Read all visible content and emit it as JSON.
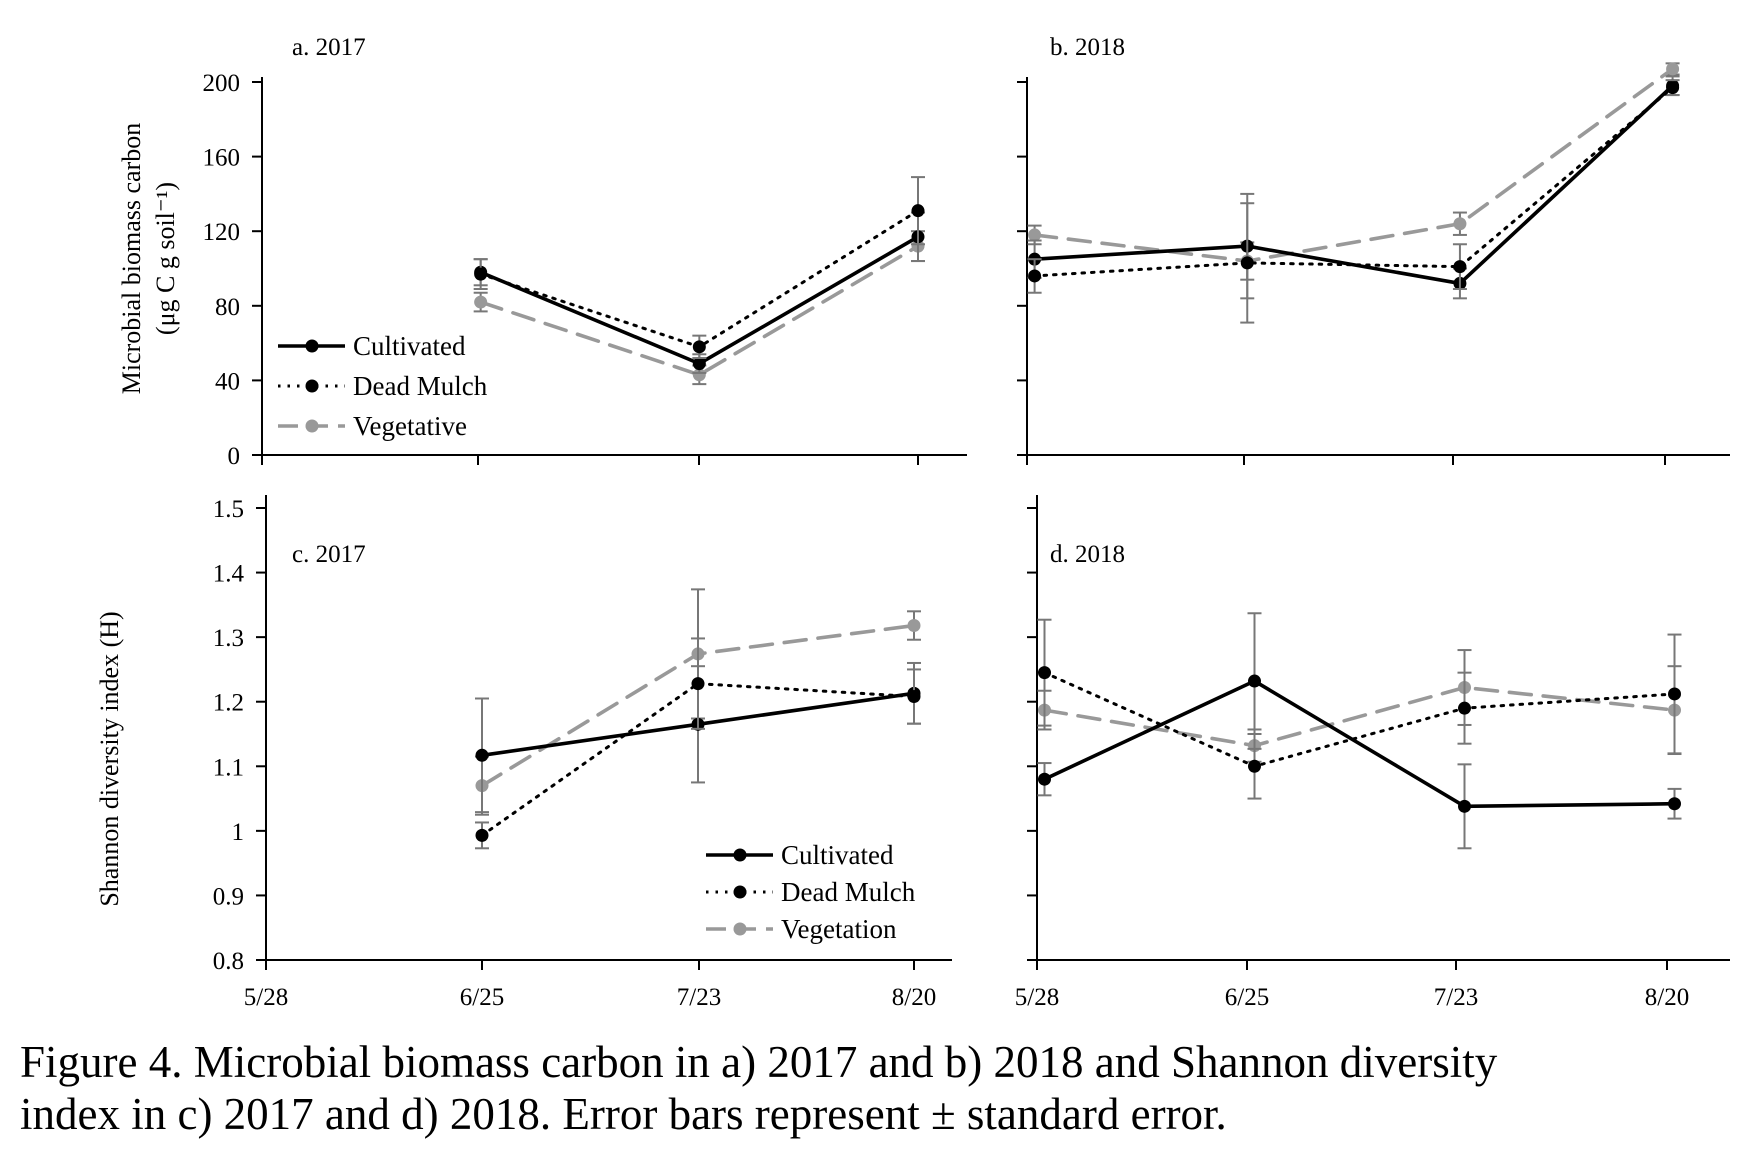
{
  "caption": {
    "line1": "Figure 4. Microbial biomass carbon in a) 2017 and b) 2018 and Shannon diversity",
    "line2": "index in c) 2017 and d) 2018. Error bars represent ± standard error."
  },
  "colors": {
    "cultivated": "#000000",
    "dead_mulch": "#000000",
    "vegetative": "#999999",
    "error_bar": "#777777"
  },
  "x_tick_labels": [
    "5/28",
    "6/25",
    "7/23",
    "8/20"
  ],
  "chart_data": [
    {
      "type": "line",
      "panel_label": "a. 2017",
      "ylabel_line1": "Microbial biomass carbon",
      "ylabel_line2": "(μg C g soil⁻¹)",
      "ylim": [
        0,
        200
      ],
      "yticks": [
        "0",
        "40",
        "80",
        "120",
        "160",
        "200"
      ],
      "x_domain_days": [
        0,
        90
      ],
      "legend": {
        "position": "bottom-left",
        "entries": [
          "Cultivated",
          "Dead Mulch",
          "Vegetative"
        ]
      },
      "series": [
        {
          "name": "Cultivated",
          "style": "solid",
          "x": [
            28,
            56,
            84
          ],
          "y": [
            98,
            49,
            117
          ],
          "err": [
            7,
            5,
            13
          ]
        },
        {
          "name": "Dead Mulch",
          "style": "dotted",
          "x": [
            28,
            56,
            84
          ],
          "y": [
            97,
            58,
            131
          ],
          "err": [
            8,
            6,
            18
          ]
        },
        {
          "name": "Vegetative",
          "style": "dashed",
          "x": [
            28,
            56,
            84
          ],
          "y": [
            82,
            43,
            112
          ],
          "err": [
            5,
            5,
            8
          ]
        }
      ]
    },
    {
      "type": "line",
      "panel_label": "b. 2018",
      "ylim": [
        0,
        200
      ],
      "x_domain_days": [
        0,
        90
      ],
      "series": [
        {
          "name": "Cultivated",
          "style": "solid",
          "x": [
            1,
            29,
            57,
            85
          ],
          "y": [
            105,
            112,
            92,
            198
          ],
          "err": [
            10,
            28,
            8,
            5
          ]
        },
        {
          "name": "Dead Mulch",
          "style": "dotted",
          "x": [
            1,
            29,
            57,
            85
          ],
          "y": [
            96,
            103,
            101,
            197
          ],
          "err": [
            9,
            32,
            12,
            4
          ]
        },
        {
          "name": "Vegetative",
          "style": "dashed",
          "x": [
            1,
            29,
            57,
            85
          ],
          "y": [
            118,
            104,
            124,
            207
          ],
          "err": [
            5,
            10,
            6,
            3
          ]
        }
      ]
    },
    {
      "type": "line",
      "panel_label": "c. 2017",
      "ylabel": "Shannon diversity index (H)",
      "ylim": [
        0.8,
        1.5
      ],
      "yticks": [
        "0.8",
        "0.9",
        "1",
        "1.1",
        "1.2",
        "1.3",
        "1.4",
        "1.5"
      ],
      "x_domain_days": [
        0,
        90
      ],
      "legend": {
        "position": "bottom-right",
        "entries": [
          "Cultivated",
          "Dead Mulch",
          "Vegetation"
        ]
      },
      "series": [
        {
          "name": "Cultivated",
          "style": "solid",
          "x": [
            28,
            56,
            84
          ],
          "y": [
            1.117,
            1.165,
            1.213
          ],
          "err": [
            0.088,
            0.09,
            0.047
          ]
        },
        {
          "name": "Dead Mulch",
          "style": "dotted",
          "x": [
            28,
            56,
            84
          ],
          "y": [
            0.993,
            1.228,
            1.208
          ],
          "err": [
            0.02,
            0.07,
            0.042
          ]
        },
        {
          "name": "Vegetation",
          "style": "dashed",
          "x": [
            28,
            56,
            84
          ],
          "y": [
            1.07,
            1.274,
            1.318
          ],
          "err": [
            0.045,
            0.1,
            0.022
          ]
        }
      ]
    },
    {
      "type": "line",
      "panel_label": "d. 2018",
      "ylim": [
        0.8,
        1.5
      ],
      "x_domain_days": [
        0,
        90
      ],
      "series": [
        {
          "name": "Cultivated",
          "style": "solid",
          "x": [
            1,
            29,
            57,
            85
          ],
          "y": [
            1.08,
            1.232,
            1.038,
            1.042
          ],
          "err": [
            0.025,
            0.105,
            0.065,
            0.023
          ]
        },
        {
          "name": "Dead Mulch",
          "style": "dotted",
          "x": [
            1,
            29,
            57,
            85
          ],
          "y": [
            1.245,
            1.1,
            1.19,
            1.212
          ],
          "err": [
            0.082,
            0.05,
            0.055,
            0.092
          ]
        },
        {
          "name": "Vegetation",
          "style": "dashed",
          "x": [
            1,
            29,
            57,
            85
          ],
          "y": [
            1.187,
            1.132,
            1.222,
            1.187
          ],
          "err": [
            0.03,
            0.025,
            0.058,
            0.068
          ]
        }
      ]
    }
  ]
}
